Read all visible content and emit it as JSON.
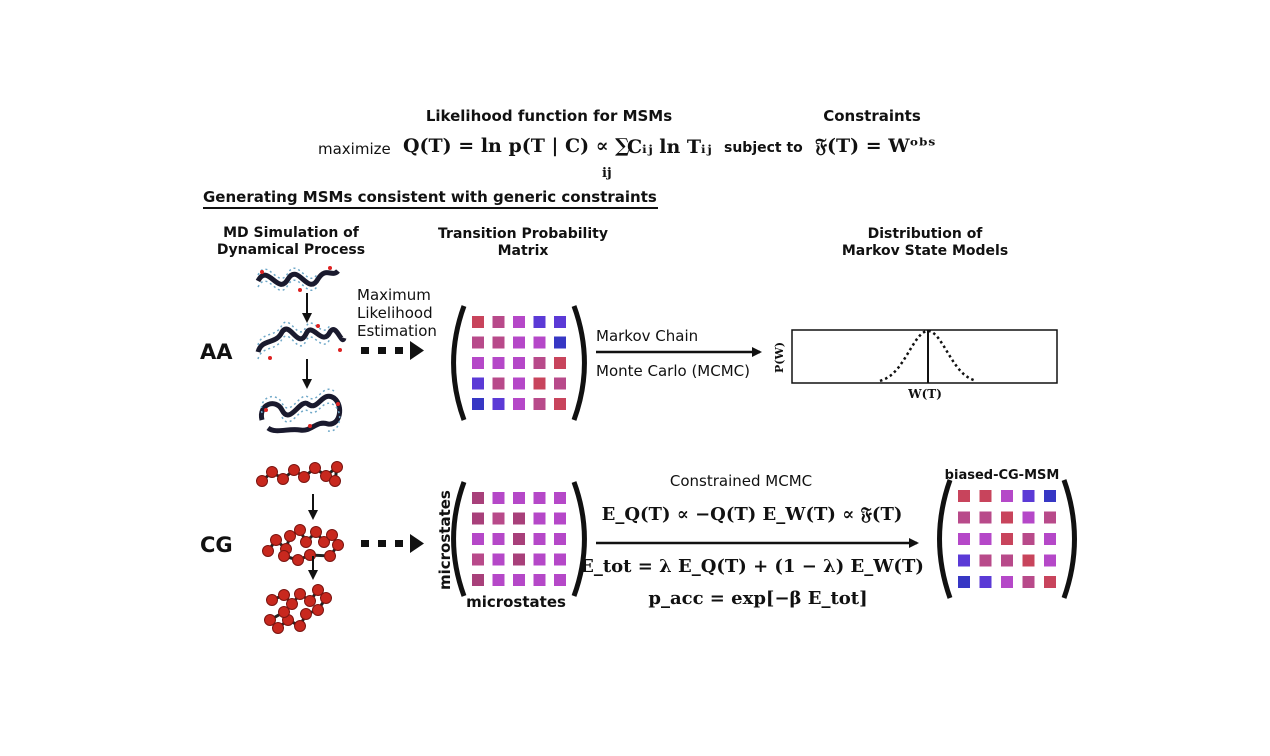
{
  "header": {
    "likelihood_title": "Likelihood function for MSMs",
    "constraints_title": "Constraints",
    "maximize": "maximize",
    "likelihood_formula": "Q(T) = ln p(T | C) ∝ ∑",
    "likelihood_sum_term": "Cᵢⱼ ln Tᵢⱼ",
    "likelihood_sum_index": "ij",
    "subject_to": "subject to",
    "constraint_formula": "𝔉(T) = Wᵒᵇˢ"
  },
  "section_title": "Generating MSMs consistent with generic constraints",
  "columns": {
    "md_simulation": [
      "MD Simulation of",
      "Dynamical Process"
    ],
    "transition_matrix": [
      "Transition Probability",
      "Matrix"
    ],
    "distribution": [
      "Distribution of",
      "Markov State Models"
    ]
  },
  "rows": {
    "aa_label": "AA",
    "cg_label": "CG"
  },
  "mle_label": [
    "Maximum",
    "Likelihood",
    "Estimation"
  ],
  "mcmc_label": [
    "Markov Chain",
    "Monte Carlo (MCMC)"
  ],
  "plot": {
    "ylabel": "P(W)",
    "xlabel": "W(T)"
  },
  "constrained": {
    "title": "Constrained MCMC",
    "eq1": "E_Q(T) ∝ −Q(T)   E_W(T) ∝ 𝔉(T)",
    "eq2": "E_tot = λ E_Q(T) + (1 − λ) E_W(T)",
    "eq3": "p_acc = exp[−β E_tot]"
  },
  "microstates_label": "microstates",
  "biased_label": "biased-CG-MSM",
  "colors": {
    "ink": "#111111",
    "aa_matrix": [
      "#c8445c",
      "#b84a8a",
      "#b548c8",
      "#5b3ad6",
      "#3737c4"
    ],
    "cg_bead": "#c8281e"
  }
}
